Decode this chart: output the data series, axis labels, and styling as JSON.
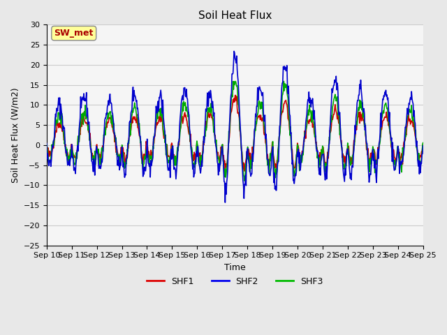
{
  "title": "Soil Heat Flux",
  "xlabel": "Time",
  "ylabel": "Soil Heat Flux (W/m2)",
  "ylim": [
    -25,
    30
  ],
  "yticks": [
    -25,
    -20,
    -15,
    -10,
    -5,
    0,
    5,
    10,
    15,
    20,
    25,
    30
  ],
  "xticklabels": [
    "Sep 10",
    "Sep 11",
    "Sep 12",
    "Sep 13",
    "Sep 14",
    "Sep 15",
    "Sep 16",
    "Sep 17",
    "Sep 18",
    "Sep 19",
    "Sep 20",
    "Sep 21",
    "Sep 22",
    "Sep 23",
    "Sep 24",
    "Sep 25"
  ],
  "colors": {
    "SHF1": "#cc0000",
    "SHF2": "#0000cc",
    "SHF3": "#00aa00"
  },
  "legend_colors": {
    "SHF1": "#dd0000",
    "SHF2": "#0000ee",
    "SHF3": "#00bb00"
  },
  "annotation_text": "SW_met",
  "annotation_color": "#aa0000",
  "annotation_bg": "#ffff99",
  "background_color": "#e8e8e8",
  "plot_bg": "#f5f5f5",
  "linewidth": 1.2,
  "num_days": 15,
  "points_per_day": 48
}
